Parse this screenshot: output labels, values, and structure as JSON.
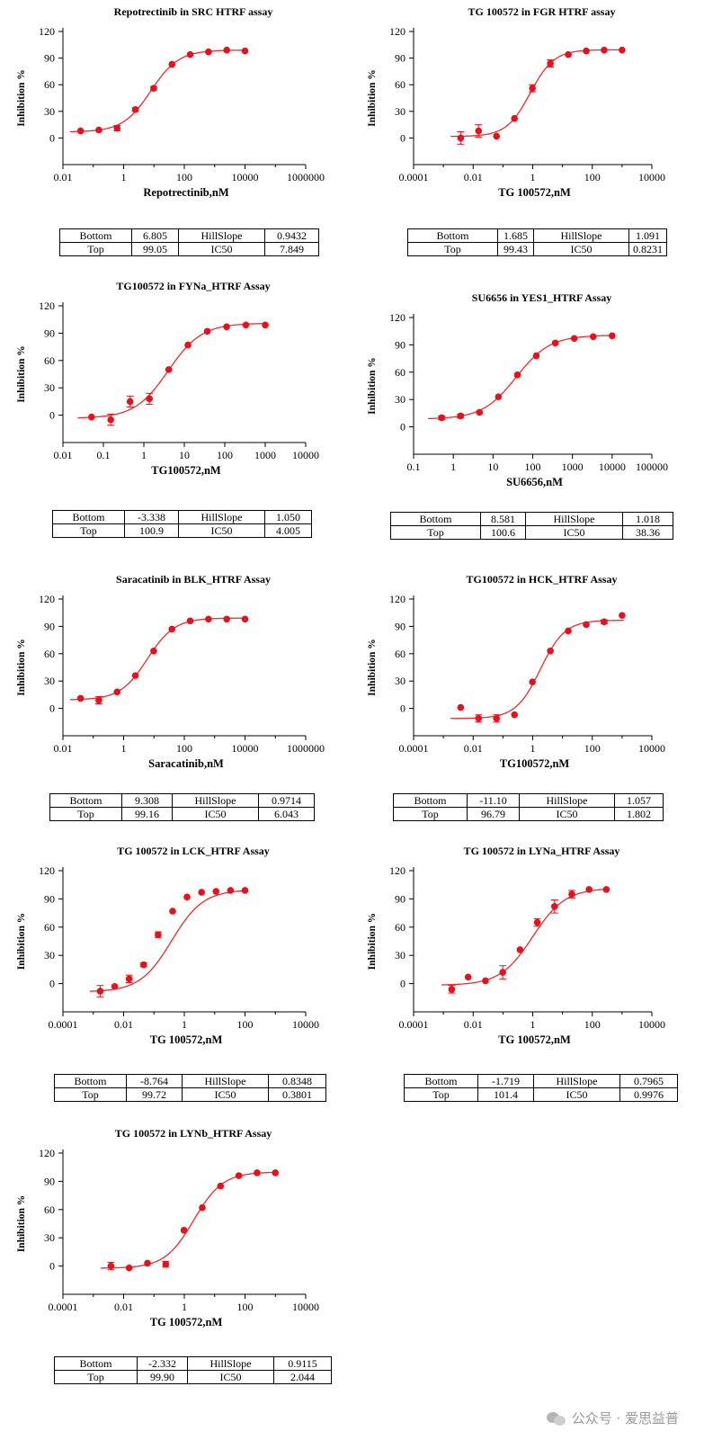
{
  "page": {
    "watermark": "公众号 · 爱思益普",
    "watermark_icon": "wechat-bubbles-icon"
  },
  "chart_data": [
    {
      "type": "scatter",
      "title": "Repotrectinib in SRC HTRF assay",
      "xlabel": "Repotrectinib,nM",
      "ylabel": "Inhibition %",
      "x_scale": "log",
      "xticks": [
        "0.01",
        "1",
        "100",
        "10000",
        "1000000"
      ],
      "xlim": [
        0.01,
        1000000
      ],
      "yticks": [
        0,
        30,
        60,
        90,
        120
      ],
      "ylim": [
        -30,
        120
      ],
      "color": "#e8101a",
      "series": [
        {
          "x": [
            0.0381,
            0.152,
            0.61,
            2.44,
            9.77,
            39.1,
            156,
            625,
            2500,
            10000
          ],
          "y": [
            8,
            9,
            11,
            32,
            56,
            83,
            94,
            97,
            99,
            98
          ],
          "err": [
            1,
            1,
            3,
            2,
            2,
            1,
            1,
            1,
            1,
            1
          ]
        }
      ],
      "fit": {
        "bottom": 6.805,
        "top": 99.05,
        "ic50": 7.849,
        "hillslope": 0.9432
      },
      "params_table": {
        "r1": [
          "Bottom",
          "6.805",
          "HillSlope",
          "0.9432"
        ],
        "r2": [
          "Top",
          "99.05",
          "IC50",
          "7.849"
        ]
      }
    },
    {
      "type": "scatter",
      "title": "TG 100572 in FGR HTRF assay",
      "xlabel": "TG 100572,nM",
      "ylabel": "Inhibition %",
      "x_scale": "log",
      "xticks": [
        "0.0001",
        "0.01",
        "1",
        "100",
        "10000"
      ],
      "xlim": [
        0.0001,
        10000
      ],
      "yticks": [
        0,
        30,
        60,
        90,
        120
      ],
      "ylim": [
        -30,
        120
      ],
      "color": "#e8101a",
      "series": [
        {
          "x": [
            0.00381,
            0.0152,
            0.061,
            0.244,
            0.977,
            3.91,
            15.6,
            62.5,
            250,
            1000
          ],
          "y": [
            0,
            8,
            2,
            22,
            56,
            84,
            94,
            98,
            99,
            99
          ],
          "err": [
            7,
            7,
            1,
            1,
            4,
            4,
            1,
            1,
            1,
            1
          ]
        }
      ],
      "fit": {
        "bottom": 1.685,
        "top": 99.43,
        "ic50": 0.8231,
        "hillslope": 1.091
      },
      "params_table": {
        "r1": [
          "Bottom",
          "1.685",
          "HillSlope",
          "1.091"
        ],
        "r2": [
          "Top",
          "99.43",
          "IC50",
          "0.8231"
        ]
      }
    },
    {
      "type": "scatter",
      "title": "TG100572 in FYNa_HTRF Assay",
      "xlabel": "TG100572,nM",
      "ylabel": "Inhibition %",
      "x_scale": "log",
      "xticks": [
        "0.01",
        "0.1",
        "1",
        "10",
        "100",
        "1000",
        "10000"
      ],
      "xlim": [
        0.01,
        10000
      ],
      "yticks": [
        0,
        30,
        60,
        90,
        120
      ],
      "ylim": [
        -30,
        120
      ],
      "color": "#e8101a",
      "series": [
        {
          "x": [
            0.0508,
            0.152,
            0.457,
            1.37,
            4.12,
            12.3,
            37,
            111,
            333,
            1000
          ],
          "y": [
            -2,
            -5,
            15,
            18,
            50,
            77,
            92,
            97,
            99,
            99
          ],
          "err": [
            1,
            6,
            6,
            6,
            1,
            1,
            1,
            1,
            1,
            1
          ]
        }
      ],
      "fit": {
        "bottom": -3.338,
        "top": 100.9,
        "ic50": 4.005,
        "hillslope": 1.05
      },
      "params_table": {
        "r1": [
          "Bottom",
          "-3.338",
          "HillSlope",
          "1.050"
        ],
        "r2": [
          "Top",
          "100.9",
          "IC50",
          "4.005"
        ]
      }
    },
    {
      "type": "scatter",
      "title": "SU6656 in YES1_HTRF Assay",
      "xlabel": "SU6656,nM",
      "ylabel": "Inhibition %",
      "x_scale": "log",
      "xticks": [
        "0.1",
        "1",
        "10",
        "100",
        "1000",
        "10000",
        "100000"
      ],
      "xlim": [
        0.1,
        100000
      ],
      "yticks": [
        0,
        30,
        60,
        90,
        120
      ],
      "ylim": [
        -30,
        120
      ],
      "color": "#e8101a",
      "series": [
        {
          "x": [
            0.508,
            1.52,
            4.57,
            13.7,
            41.2,
            123,
            370,
            1111,
            3333,
            10000
          ],
          "y": [
            10,
            12,
            16,
            33,
            57,
            78,
            92,
            97,
            99,
            100
          ],
          "err": [
            2,
            2,
            1,
            1,
            1,
            1,
            1,
            1,
            1,
            1
          ]
        }
      ],
      "fit": {
        "bottom": 8.581,
        "top": 100.6,
        "ic50": 38.36,
        "hillslope": 1.018
      },
      "params_table": {
        "r1": [
          "Bottom",
          "8.581",
          "HillSlope",
          "1.018"
        ],
        "r2": [
          "Top",
          "100.6",
          "IC50",
          "38.36"
        ]
      }
    },
    {
      "type": "scatter",
      "title": "Saracatinib in BLK_HTRF Assay",
      "xlabel": "Saracatinib,nM",
      "ylabel": "Inhibition %",
      "x_scale": "log",
      "xticks": [
        "0.01",
        "1",
        "100",
        "10000",
        "1000000"
      ],
      "xlim": [
        0.01,
        1000000
      ],
      "yticks": [
        0,
        30,
        60,
        90,
        120
      ],
      "ylim": [
        -30,
        120
      ],
      "color": "#e8101a",
      "series": [
        {
          "x": [
            0.0381,
            0.152,
            0.61,
            2.44,
            9.77,
            39.1,
            156,
            625,
            2500,
            10000
          ],
          "y": [
            11,
            9,
            18,
            36,
            63,
            87,
            96,
            98,
            98,
            98
          ],
          "err": [
            1,
            4,
            1,
            1,
            1,
            1,
            1,
            1,
            1,
            1
          ]
        }
      ],
      "fit": {
        "bottom": 9.308,
        "top": 99.16,
        "ic50": 6.043,
        "hillslope": 0.9714
      },
      "params_table": {
        "r1": [
          "Bottom",
          "9.308",
          "HillSlope",
          "0.9714"
        ],
        "r2": [
          "Top",
          "99.16",
          "IC50",
          "6.043"
        ]
      }
    },
    {
      "type": "scatter",
      "title": "TG100572 in HCK_HTRF Assay",
      "xlabel": "TG100572,nM",
      "ylabel": "Inhibition %",
      "x_scale": "log",
      "xticks": [
        "0.0001",
        "0.01",
        "1",
        "100",
        "10000"
      ],
      "xlim": [
        0.0001,
        10000
      ],
      "yticks": [
        0,
        30,
        60,
        90,
        120
      ],
      "ylim": [
        -30,
        120
      ],
      "color": "#e8101a",
      "series": [
        {
          "x": [
            0.00381,
            0.0152,
            0.061,
            0.244,
            0.977,
            3.91,
            15.6,
            62.5,
            250,
            1000
          ],
          "y": [
            1,
            -11,
            -11,
            -7,
            29,
            63,
            85,
            92,
            95,
            102
          ],
          "err": [
            1,
            4,
            4,
            1,
            1,
            1,
            1,
            1,
            2,
            1
          ]
        }
      ],
      "fit": {
        "bottom": -11.1,
        "top": 96.79,
        "ic50": 1.802,
        "hillslope": 1.057
      },
      "params_table": {
        "r1": [
          "Bottom",
          "-11.10",
          "HillSlope",
          "1.057"
        ],
        "r2": [
          "Top",
          "96.79",
          "IC50",
          "1.802"
        ]
      }
    },
    {
      "type": "scatter",
      "title": "TG 100572 in LCK_HTRF Assay",
      "xlabel": "TG 100572,nM",
      "ylabel": "Inhibition %",
      "x_scale": "log",
      "xticks": [
        "0.0001",
        "0.01",
        "1",
        "100",
        "10000"
      ],
      "xlim": [
        0.0001,
        10000
      ],
      "yticks": [
        0,
        30,
        60,
        90,
        120
      ],
      "ylim": [
        -30,
        120
      ],
      "color": "#e8101a",
      "series": [
        {
          "x": [
            0.00169,
            0.00508,
            0.0152,
            0.0457,
            0.137,
            0.412,
            1.23,
            3.7,
            11.1,
            33.3,
            100
          ],
          "y": [
            -8,
            -3,
            5,
            20,
            52,
            77,
            92,
            97,
            98,
            99,
            99
          ],
          "err": [
            6,
            1,
            4,
            2,
            3,
            1,
            1,
            1,
            1,
            1,
            1
          ]
        }
      ],
      "fit": {
        "bottom": -8.764,
        "top": 99.72,
        "ic50": 0.3801,
        "hillslope": 0.8348
      },
      "params_table": {
        "r1": [
          "Bottom",
          "-8.764",
          "HillSlope",
          "0.8348"
        ],
        "r2": [
          "Top",
          "99.72",
          "IC50",
          "0.3801"
        ]
      }
    },
    {
      "type": "scatter",
      "title": "TG 100572 in LYNa_HTRF Assay",
      "xlabel": "TG 100572,nM",
      "ylabel": "Inhibition %",
      "x_scale": "log",
      "xticks": [
        "0.0001",
        "0.01",
        "1",
        "100",
        "10000"
      ],
      "xlim": [
        0.0001,
        10000
      ],
      "yticks": [
        0,
        30,
        60,
        90,
        120
      ],
      "ylim": [
        -30,
        120
      ],
      "color": "#e8101a",
      "series": [
        {
          "x": [
            0.0019,
            0.0068,
            0.0259,
            0.0985,
            0.374,
            1.42,
            5.4,
            20.5,
            78,
            296
          ],
          "y": [
            -6,
            7,
            3,
            12,
            36,
            65,
            82,
            95,
            100,
            100
          ],
          "err": [
            4,
            1,
            1,
            7,
            1,
            4,
            7,
            4,
            1,
            1
          ]
        }
      ],
      "fit": {
        "bottom": -1.719,
        "top": 101.4,
        "ic50": 0.9976,
        "hillslope": 0.7965
      },
      "params_table": {
        "r1": [
          "Bottom",
          "-1.719",
          "HillSlope",
          "0.7965"
        ],
        "r2": [
          "Top",
          "101.4",
          "IC50",
          "0.9976"
        ]
      }
    },
    {
      "type": "scatter",
      "title": "TG 100572 in LYNb_HTRF Assay",
      "xlabel": "TG 100572,nM",
      "ylabel": "Inhibition %",
      "x_scale": "log",
      "xticks": [
        "0.0001",
        "0.01",
        "1",
        "100",
        "10000"
      ],
      "xlim": [
        0.0001,
        10000
      ],
      "yticks": [
        0,
        30,
        60,
        90,
        120
      ],
      "ylim": [
        -30,
        120
      ],
      "color": "#e8101a",
      "series": [
        {
          "x": [
            0.00381,
            0.0152,
            0.061,
            0.244,
            0.977,
            3.91,
            15.6,
            62.5,
            250,
            1000
          ],
          "y": [
            0,
            -2,
            3,
            2,
            38,
            62,
            85,
            96,
            99,
            99
          ],
          "err": [
            4,
            1,
            1,
            3,
            1,
            1,
            1,
            1,
            1,
            1
          ]
        }
      ],
      "fit": {
        "bottom": -2.332,
        "top": 99.9,
        "ic50": 2.044,
        "hillslope": 0.9115
      },
      "params_table": {
        "r1": [
          "Bottom",
          "-2.332",
          "HillSlope",
          "0.9115"
        ],
        "r2": [
          "Top",
          "99.90",
          "IC50",
          "2.044"
        ]
      }
    }
  ]
}
